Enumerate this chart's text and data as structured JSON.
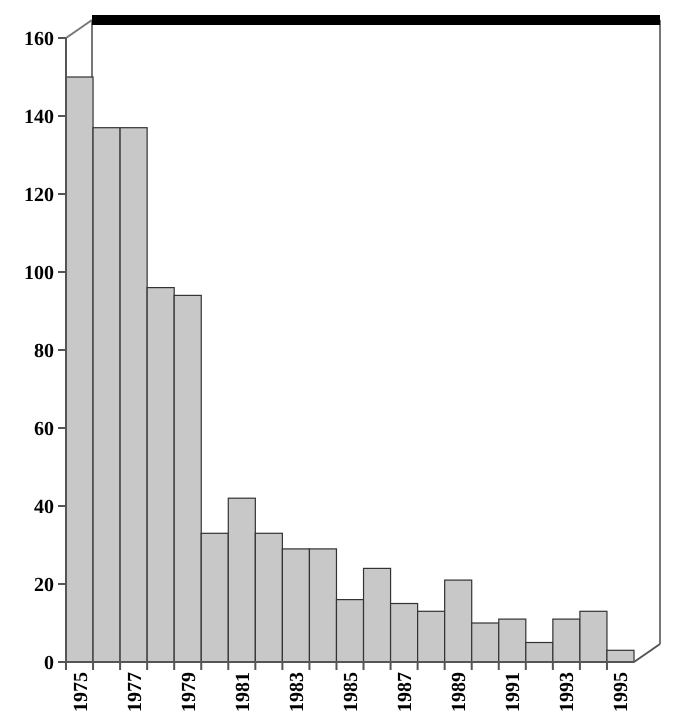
{
  "chart_data": {
    "type": "bar",
    "categories": [
      "1975",
      null,
      "1977",
      null,
      "1979",
      null,
      "1981",
      null,
      "1983",
      null,
      "1985",
      null,
      "1987",
      null,
      "1989",
      null,
      "1991",
      null,
      "1993",
      null,
      "1995"
    ],
    "values": [
      150,
      137,
      137,
      96,
      94,
      33,
      42,
      33,
      29,
      29,
      16,
      24,
      15,
      13,
      21,
      10,
      11,
      5,
      11,
      13,
      3
    ],
    "color": "#c8c8c8",
    "ylim": [
      0,
      160
    ],
    "yticks": [
      0,
      20,
      40,
      60,
      80,
      100,
      120,
      140,
      160
    ],
    "grid": false
  }
}
